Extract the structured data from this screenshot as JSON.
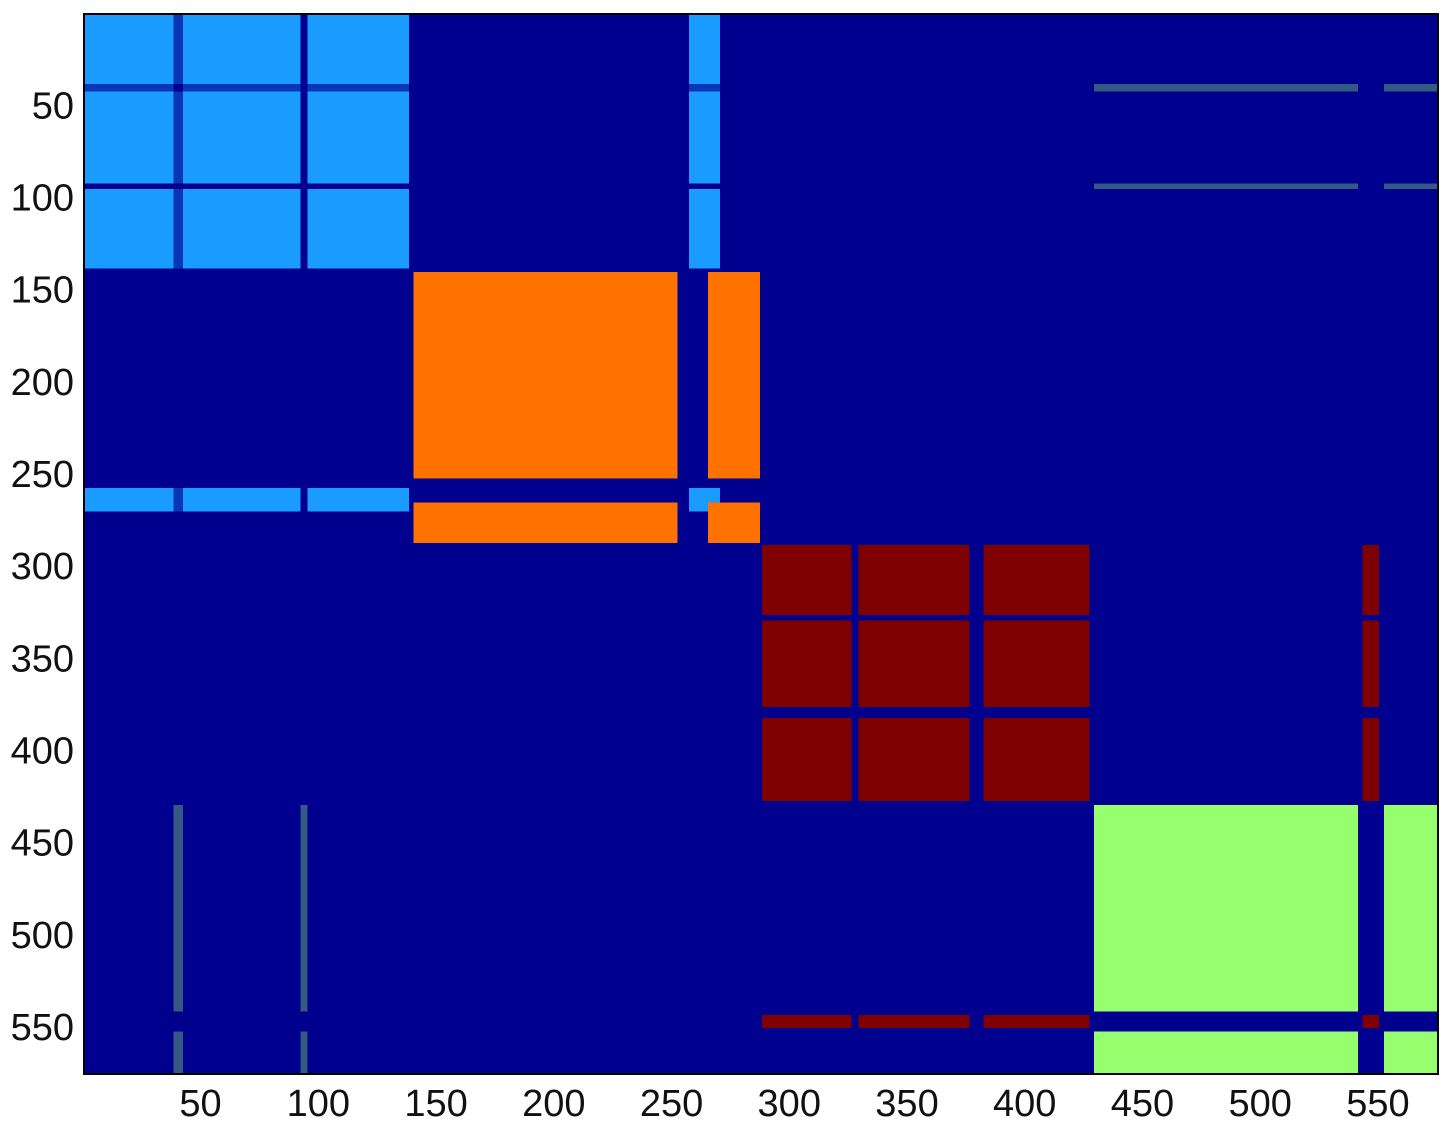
{
  "chart_data": {
    "type": "heatmap",
    "title": "",
    "xlabel": "",
    "ylabel": "",
    "xlim": [
      0.5,
      575.5
    ],
    "ylim": [
      0.5,
      575.5
    ],
    "y_reversed": true,
    "grid": false,
    "legend": "none",
    "background_value": 0,
    "palette": {
      "0": "#00008f",
      "1": "#1a9cff",
      "2": "#ff7200",
      "3": "#7e0000",
      "4": "#96ff6e"
    },
    "xticks": [
      50,
      100,
      150,
      200,
      250,
      300,
      350,
      400,
      450,
      500,
      550
    ],
    "xtick_labels": [
      "50",
      "100",
      "150",
      "200",
      "250",
      "300",
      "350",
      "400",
      "450",
      "500",
      "550"
    ],
    "yticks": [
      50,
      100,
      150,
      200,
      250,
      300,
      350,
      400,
      450,
      500,
      550
    ],
    "ytick_labels": [
      "50",
      "100",
      "150",
      "200",
      "250",
      "300",
      "350",
      "400",
      "450",
      "500",
      "550"
    ],
    "clusters": [
      {
        "value": 1,
        "members": [
          [
            1,
            38
          ],
          [
            43,
            92
          ],
          [
            96,
            138
          ],
          [
            258,
            270
          ]
        ],
        "gaps": [
          [
            39,
            42
          ],
          [
            93,
            95
          ],
          [
            256,
            257
          ],
          [
            271,
            271
          ]
        ],
        "partial": [
          [
            39,
            42
          ]
        ]
      },
      {
        "value": 2,
        "members": [
          [
            141,
            252
          ],
          [
            266,
            287
          ]
        ],
        "gaps": [
          [
            253,
            265
          ],
          [
            324,
            329
          ],
          [
            376,
            378
          ],
          [
            425,
            428
          ]
        ],
        "partial": [
          [
            270,
            276
          ]
        ]
      },
      {
        "value": 3,
        "members": [
          [
            289,
            326
          ],
          [
            330,
            376
          ],
          [
            383,
            427
          ],
          [
            544,
            550
          ]
        ],
        "gaps": [
          [
            327,
            329
          ],
          [
            377,
            382
          ],
          [
            537,
            540
          ]
        ],
        "partial": [
          [
            322,
            326
          ]
        ]
      },
      {
        "value": 4,
        "members": [
          [
            430,
            541
          ],
          [
            553,
            575
          ]
        ],
        "gaps": [
          [
            542,
            552
          ]
        ],
        "partial": [
          [
            39,
            42
          ],
          [
            93,
            95
          ]
        ]
      }
    ]
  }
}
